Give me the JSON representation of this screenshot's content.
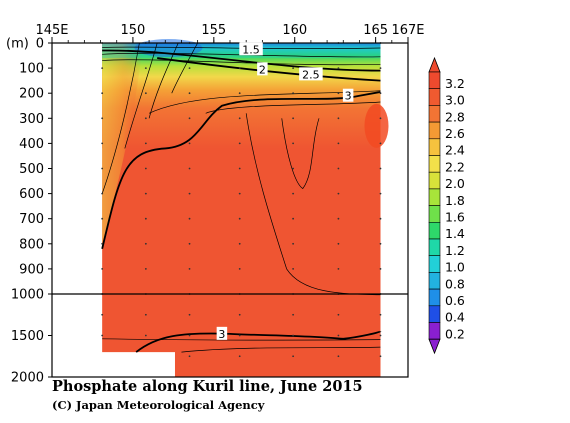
{
  "chart_data": {
    "type": "contour",
    "title": "Phosphate along Kuril line, June 2015",
    "credit": "(C) Japan Meteorological Agency",
    "ylabel": "(m)",
    "x_ticks": [
      {
        "value": 145,
        "label": "145E"
      },
      {
        "value": 150,
        "label": "150"
      },
      {
        "value": 155,
        "label": "155"
      },
      {
        "value": 160,
        "label": "160"
      },
      {
        "value": 165,
        "label": "165"
      },
      {
        "value": 167,
        "label": "167E"
      }
    ],
    "xlim": [
      145,
      167
    ],
    "y_ticks": [
      0,
      100,
      200,
      300,
      400,
      500,
      600,
      700,
      800,
      900,
      1000,
      1500,
      2000
    ],
    "ylim": [
      0,
      2000
    ],
    "y_axis_break": 1000,
    "colorbar": {
      "labels": [
        "3.2",
        "3.0",
        "2.8",
        "2.6",
        "2.4",
        "2.2",
        "2.0",
        "1.8",
        "1.6",
        "1.4",
        "1.2",
        "1.0",
        "0.8",
        "0.6",
        "0.4",
        "0.2"
      ],
      "colors": [
        "#8a1fd0",
        "#1f4fe6",
        "#1f8fe8",
        "#22b2e0",
        "#22d0d8",
        "#1fd8a8",
        "#2ed86a",
        "#6fe04a",
        "#a8e43a",
        "#d8e23a",
        "#f2e04a",
        "#f6c23e",
        "#f49a34",
        "#f27434",
        "#f05a30",
        "#ee4a2e"
      ]
    },
    "contour_labels": [
      {
        "text": "1.5",
        "lon": 157.3,
        "depth": 25
      },
      {
        "text": "2",
        "lon": 158.0,
        "depth": 105
      },
      {
        "text": "2.5",
        "lon": 161.0,
        "depth": 125
      },
      {
        "text": "3",
        "lon": 163.3,
        "depth": 210
      },
      {
        "text": "3",
        "lon": 155.5,
        "depth": 1480
      }
    ],
    "station_lons": [
      148.1,
      150.8,
      153.5,
      156.6,
      159.9,
      162.7,
      165.3
    ],
    "data_lon_range": [
      148.1,
      165.3
    ]
  }
}
